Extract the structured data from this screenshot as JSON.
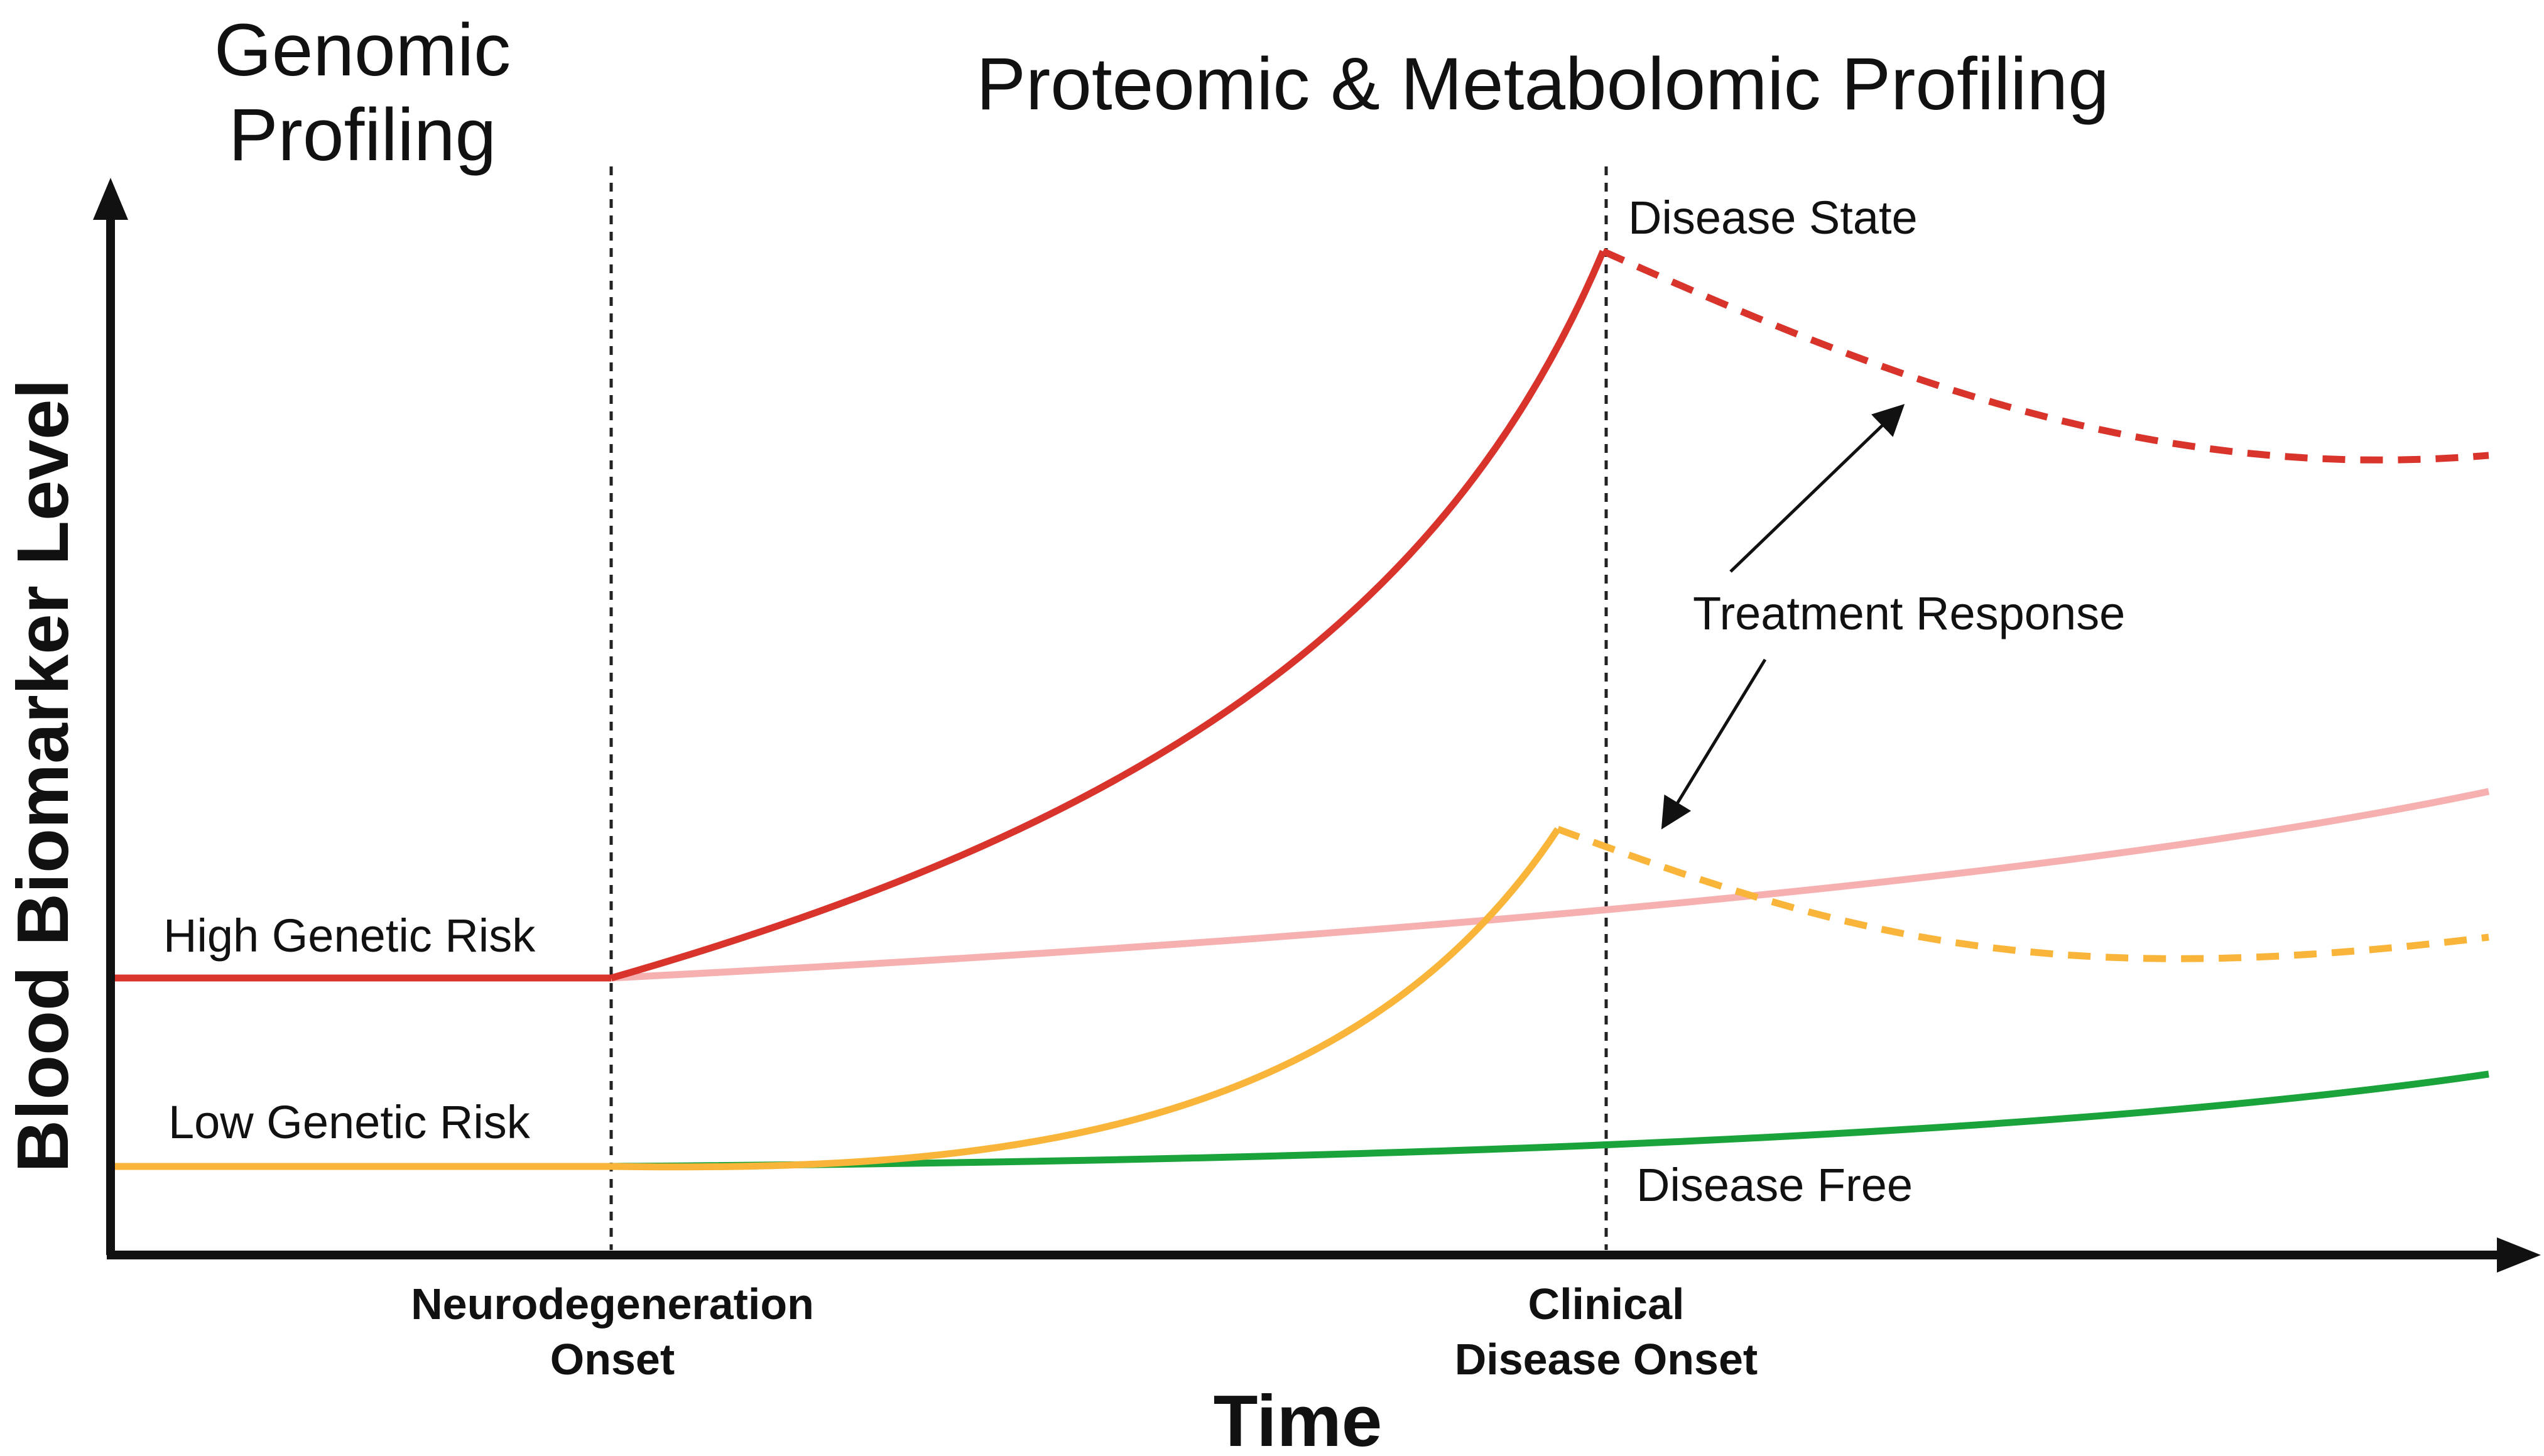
{
  "header": {
    "genomic_line1": "Genomic",
    "genomic_line2": "Profiling",
    "proteomic": "Proteomic & Metabolomic Profiling"
  },
  "axes": {
    "y_label": "Blood Biomarker Level",
    "x_label": "Time"
  },
  "milestones": {
    "neuro_line1": "Neurodegeneration",
    "neuro_line2": "Onset",
    "clinical_line1": "Clinical",
    "clinical_line2": "Disease Onset"
  },
  "curves": {
    "high_risk": "High Genetic Risk",
    "low_risk": "Low Genetic Risk",
    "disease_state": "Disease State",
    "disease_free": "Disease Free",
    "treatment": "Treatment Response"
  },
  "colors": {
    "red": "#d8342c",
    "pink": "#f6b0b0",
    "orange": "#f8b53a",
    "green": "#1aa33a",
    "axis": "#111111"
  }
}
